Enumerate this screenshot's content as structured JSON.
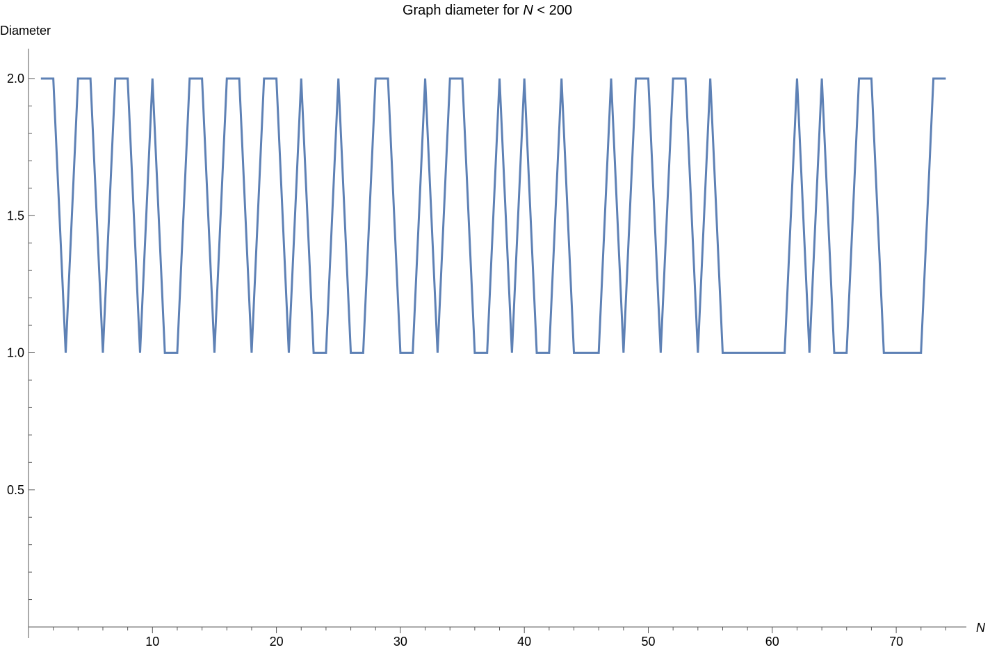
{
  "chart_data": {
    "type": "line",
    "title_prefix": "Graph diameter for ",
    "title_var": "N",
    "title_suffix": " < 200",
    "xlabel": "N",
    "ylabel": "Diameter",
    "x_ticks": [
      10,
      20,
      30,
      40,
      50,
      60,
      70
    ],
    "y_ticks": [
      0.5,
      1.0,
      1.5,
      2.0
    ],
    "y_tick_labels": [
      "0.5",
      "1.0",
      "1.5",
      "2.0"
    ],
    "xlim": [
      0,
      76
    ],
    "ylim": [
      0,
      2.1
    ],
    "grid": false,
    "line_color": "#5E81B5",
    "series": [
      {
        "x": [
          1,
          2,
          3,
          4,
          5,
          6,
          7,
          8,
          9,
          10,
          11,
          12,
          13,
          14,
          15,
          16,
          17,
          18,
          19,
          20,
          21,
          22,
          23,
          24,
          25,
          26,
          27,
          28,
          29,
          30,
          31,
          32,
          33,
          34,
          35,
          36,
          37,
          38,
          39,
          40,
          41,
          42,
          43,
          44,
          45,
          46,
          47,
          48,
          49,
          50,
          51,
          52,
          53,
          54,
          55,
          56,
          57,
          58,
          59,
          60,
          61,
          62,
          63,
          64,
          65,
          66,
          67,
          68,
          69,
          70,
          71,
          72,
          73,
          74
        ],
        "values": [
          2,
          2,
          1,
          2,
          2,
          1,
          2,
          2,
          1,
          2,
          1,
          1,
          2,
          2,
          1,
          2,
          2,
          1,
          2,
          2,
          1,
          2,
          1,
          1,
          2,
          1,
          1,
          2,
          2,
          1,
          1,
          2,
          1,
          2,
          2,
          1,
          1,
          2,
          1,
          2,
          1,
          1,
          2,
          1,
          1,
          1,
          2,
          1,
          2,
          2,
          1,
          2,
          2,
          1,
          2,
          1,
          1,
          1,
          1,
          1,
          1,
          2,
          1,
          2,
          1,
          1,
          2,
          2,
          1,
          1,
          1,
          1,
          2,
          2
        ]
      }
    ]
  }
}
